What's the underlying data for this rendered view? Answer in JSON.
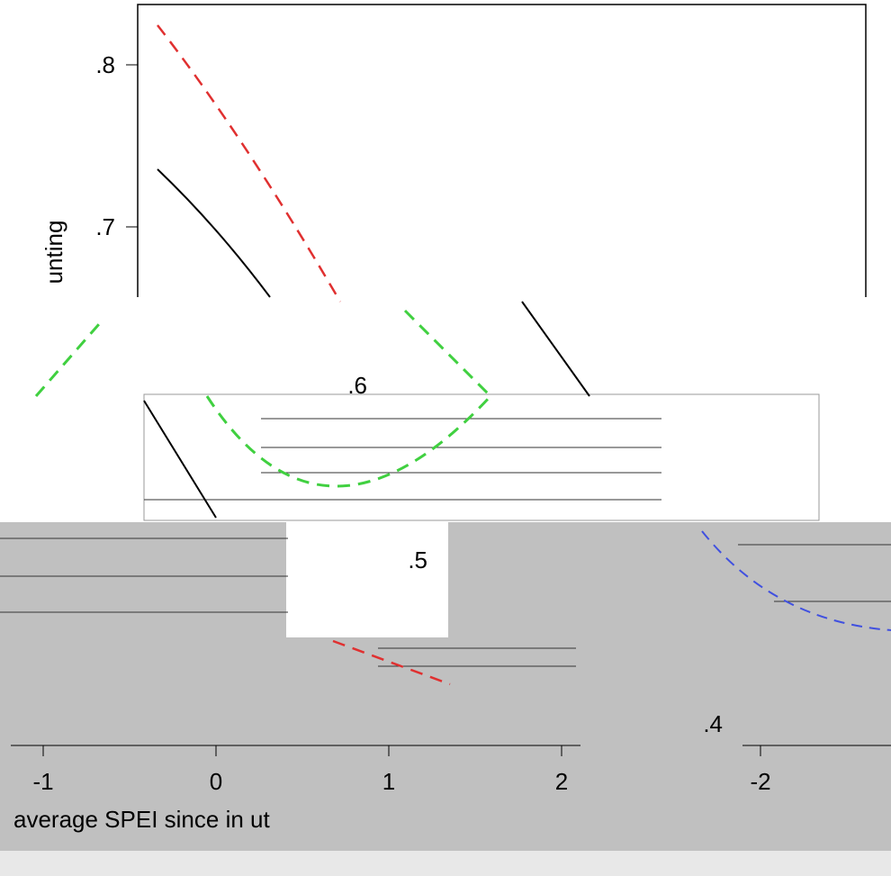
{
  "screen": {
    "y_axis_title": "unting",
    "y_ticks": [
      ".8",
      ".7",
      ".6",
      ".5",
      ".4"
    ],
    "x_ticks": [
      "-1",
      "0",
      "1",
      "2",
      "-2"
    ],
    "x_axis_title": "average SPEI since in ut"
  }
}
